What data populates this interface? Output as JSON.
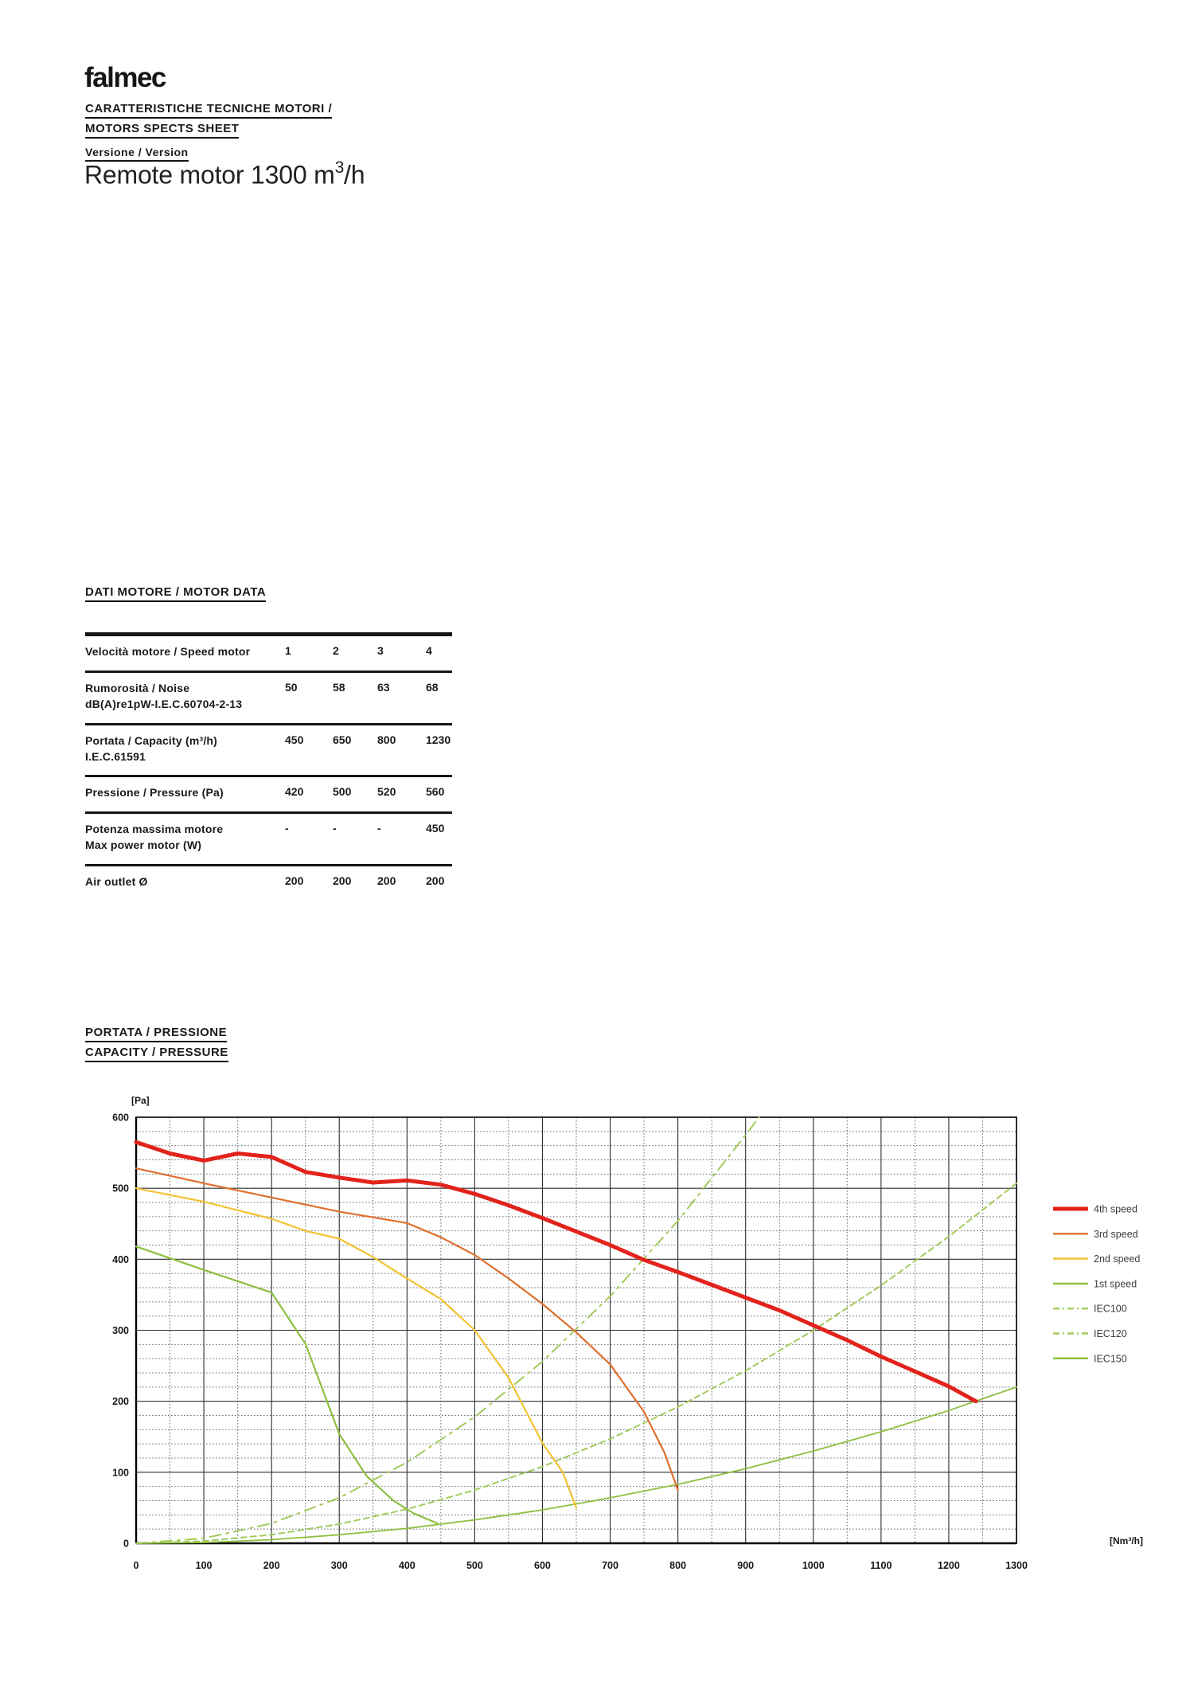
{
  "logo_text": "falmec",
  "header": {
    "line1": "CARATTERISTICHE TECNICHE MOTORI /",
    "line2": "MOTORS SPECTS SHEET"
  },
  "version": {
    "label": "Versione / Version",
    "title_prefix": "Remote motor 1300 m",
    "title_sup": "3",
    "title_suffix": "/h"
  },
  "motor_data": {
    "heading": "DATI MOTORE / MOTOR DATA",
    "header_row": {
      "label_lines": [
        "Velocità motore / Speed motor"
      ],
      "values": [
        "1",
        "2",
        "3",
        "4"
      ]
    },
    "rows": [
      {
        "label_lines": [
          "Rumorosità / Noise",
          "dB(A)re1pW-I.E.C.60704-2-13"
        ],
        "values": [
          "50",
          "58",
          "63",
          "68"
        ]
      },
      {
        "label_lines": [
          "Portata / Capacity (m³/h)",
          "I.E.C.61591"
        ],
        "values": [
          "450",
          "650",
          "800",
          "1230"
        ]
      },
      {
        "label_lines": [
          "Pressione / Pressure (Pa)"
        ],
        "values": [
          "420",
          "500",
          "520",
          "560"
        ]
      },
      {
        "label_lines": [
          "Potenza massima motore",
          "Max power motor (W)"
        ],
        "values": [
          "-",
          "-",
          "-",
          "450"
        ]
      },
      {
        "label_lines": [
          "Air outlet Ø"
        ],
        "values": [
          "200",
          "200",
          "200",
          "200"
        ]
      }
    ]
  },
  "chart_section": {
    "heading_line1": "PORTATA / PRESSIONE",
    "heading_line2": "CAPACITY / PRESSURE"
  },
  "chart_data": {
    "type": "line",
    "title": "PORTATA / PRESSIONE — CAPACITY / PRESSURE",
    "ylabel": "[Pa]",
    "xlabel": "[Nm³/h]",
    "xlim": [
      0,
      1300
    ],
    "ylim": [
      0,
      600
    ],
    "x_major": 100,
    "x_minor": 50,
    "y_major": 100,
    "y_minor": 20,
    "grid": true,
    "legend_position": "right",
    "x_ticks": [
      "0",
      "100",
      "200",
      "300",
      "400",
      "500",
      "600",
      "700",
      "800",
      "900",
      "1000",
      "1100",
      "1200",
      "1300"
    ],
    "y_ticks": [
      "0",
      "100",
      "200",
      "300",
      "400",
      "500",
      "600"
    ],
    "colors": {
      "speed4": "#e2231c",
      "speed3": "#e06f2d",
      "speed2": "#f3c233",
      "speed1": "#8cbf3f",
      "iec": "#a2cb5c"
    },
    "series": [
      {
        "name": "4th speed",
        "color": "#e2231c",
        "width": 5,
        "dash": null,
        "points": [
          [
            0,
            565
          ],
          [
            50,
            549
          ],
          [
            100,
            539
          ],
          [
            150,
            549
          ],
          [
            200,
            544
          ],
          [
            250,
            523
          ],
          [
            300,
            515
          ],
          [
            350,
            508
          ],
          [
            400,
            511
          ],
          [
            450,
            505
          ],
          [
            500,
            492
          ],
          [
            550,
            476
          ],
          [
            600,
            458
          ],
          [
            650,
            439
          ],
          [
            700,
            420
          ],
          [
            750,
            399
          ],
          [
            800,
            382
          ],
          [
            850,
            364
          ],
          [
            900,
            346
          ],
          [
            950,
            328
          ],
          [
            1000,
            307
          ],
          [
            1050,
            286
          ],
          [
            1100,
            263
          ],
          [
            1150,
            242
          ],
          [
            1200,
            221
          ],
          [
            1240,
            200
          ]
        ]
      },
      {
        "name": "3rd speed",
        "color": "#e06f2d",
        "width": 2.2,
        "dash": null,
        "points": [
          [
            0,
            528
          ],
          [
            100,
            507
          ],
          [
            200,
            487
          ],
          [
            300,
            467
          ],
          [
            350,
            459
          ],
          [
            400,
            451
          ],
          [
            450,
            431
          ],
          [
            500,
            406
          ],
          [
            550,
            373
          ],
          [
            600,
            337
          ],
          [
            650,
            297
          ],
          [
            700,
            252
          ],
          [
            750,
            185
          ],
          [
            780,
            128
          ],
          [
            800,
            75
          ]
        ]
      },
      {
        "name": "2nd speed",
        "color": "#f3c233",
        "width": 2.2,
        "dash": null,
        "points": [
          [
            0,
            500
          ],
          [
            100,
            481
          ],
          [
            200,
            457
          ],
          [
            250,
            440
          ],
          [
            300,
            429
          ],
          [
            350,
            403
          ],
          [
            400,
            373
          ],
          [
            450,
            344
          ],
          [
            500,
            300
          ],
          [
            550,
            233
          ],
          [
            600,
            141
          ],
          [
            630,
            100
          ],
          [
            650,
            50
          ]
        ]
      },
      {
        "name": "1st speed",
        "color": "#8cbf3f",
        "width": 2.2,
        "dash": null,
        "points": [
          [
            0,
            418
          ],
          [
            100,
            385
          ],
          [
            200,
            353
          ],
          [
            250,
            281
          ],
          [
            300,
            154
          ],
          [
            340,
            95
          ],
          [
            380,
            60
          ],
          [
            410,
            42
          ],
          [
            445,
            28
          ]
        ]
      },
      {
        "name": "IEC100",
        "color": "#a2cb5c",
        "width": 2,
        "dash": "14 7 3 7",
        "points": [
          [
            0,
            0
          ],
          [
            100,
            7
          ],
          [
            200,
            28
          ],
          [
            300,
            64
          ],
          [
            400,
            114
          ],
          [
            500,
            178
          ],
          [
            600,
            256
          ],
          [
            700,
            348
          ],
          [
            800,
            454
          ],
          [
            900,
            575
          ],
          [
            920,
            600
          ]
        ]
      },
      {
        "name": "IEC120",
        "color": "#a2cb5c",
        "width": 2,
        "dash": "7 5",
        "points": [
          [
            0,
            0
          ],
          [
            100,
            3
          ],
          [
            200,
            12
          ],
          [
            300,
            27
          ],
          [
            400,
            48
          ],
          [
            500,
            75
          ],
          [
            600,
            108
          ],
          [
            700,
            147
          ],
          [
            800,
            192
          ],
          [
            900,
            243
          ],
          [
            1000,
            300
          ],
          [
            1100,
            363
          ],
          [
            1200,
            432
          ],
          [
            1300,
            507
          ]
        ]
      },
      {
        "name": "IEC150",
        "color": "#8cbf3f",
        "width": 1.8,
        "dash": null,
        "points": [
          [
            0,
            0
          ],
          [
            100,
            1
          ],
          [
            200,
            5
          ],
          [
            300,
            12
          ],
          [
            400,
            21
          ],
          [
            500,
            33
          ],
          [
            600,
            47
          ],
          [
            700,
            64
          ],
          [
            800,
            83
          ],
          [
            900,
            105
          ],
          [
            1000,
            130
          ],
          [
            1100,
            157
          ],
          [
            1200,
            187
          ],
          [
            1300,
            220
          ]
        ]
      }
    ]
  }
}
